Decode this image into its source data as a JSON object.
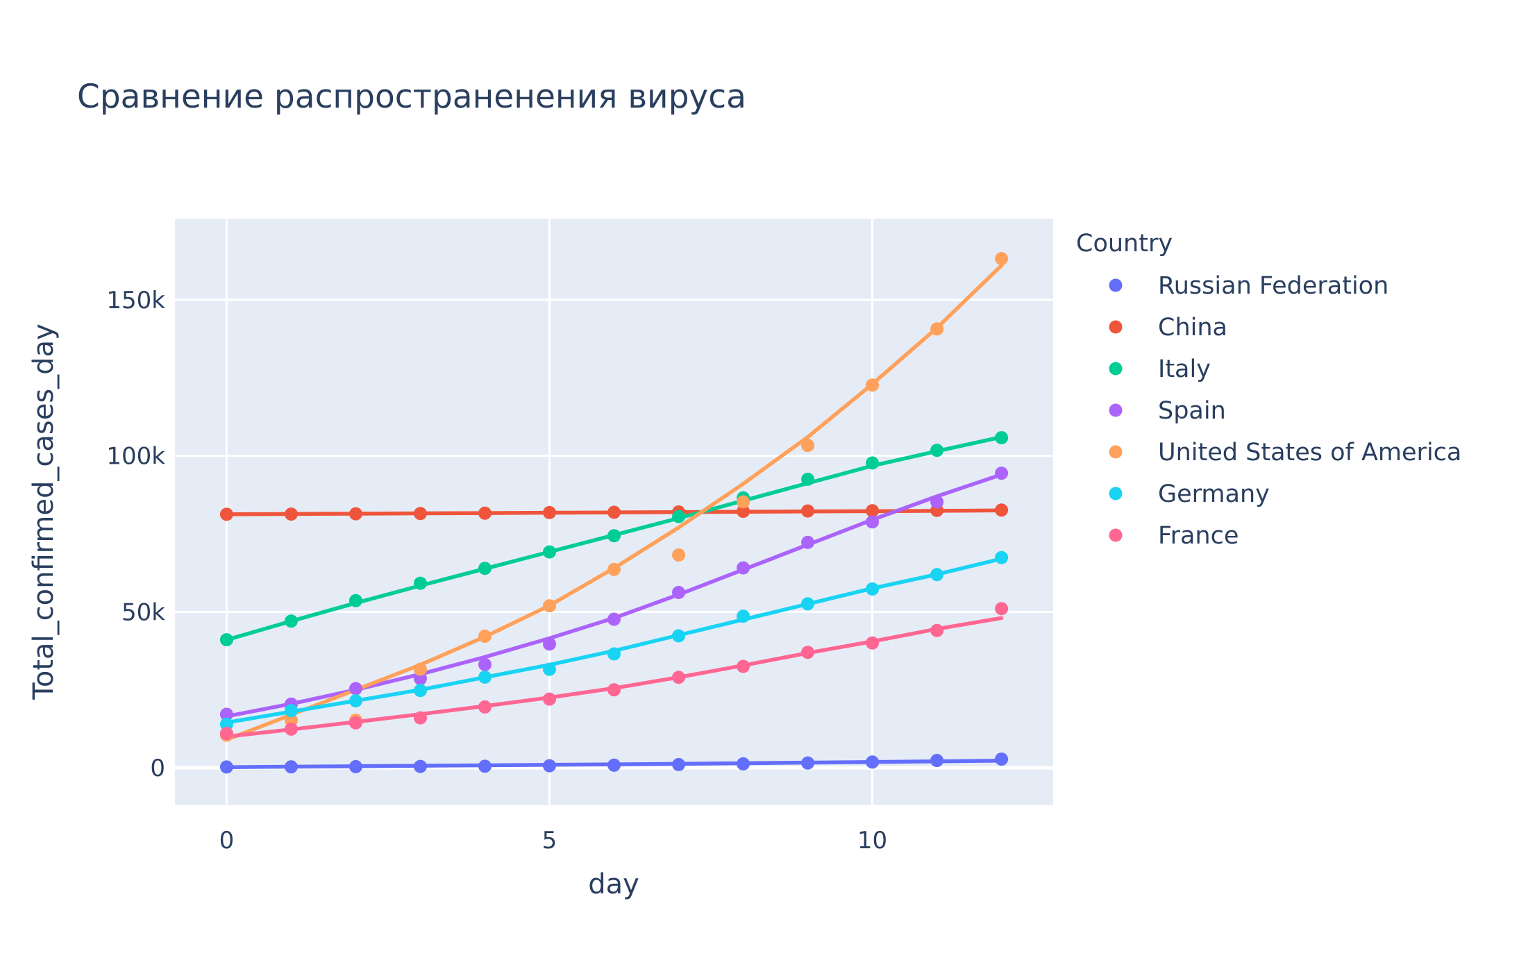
{
  "chart_data": {
    "type": "scatter",
    "title": "Сравнение распространенения вируса",
    "xlabel": "day",
    "ylabel": "Total_confirmed_cases_day",
    "xlim": [
      -0.8,
      12.8
    ],
    "ylim": [
      -12000,
      176000
    ],
    "x_ticks": [
      0,
      5,
      10
    ],
    "x_tick_labels": [
      "0",
      "5",
      "10"
    ],
    "y_ticks": [
      0,
      50000,
      100000,
      150000
    ],
    "y_tick_labels": [
      "0",
      "50k",
      "100k",
      "150k"
    ],
    "grid": true,
    "legend_title": "Country",
    "legend_position": "right",
    "x": [
      0,
      1,
      2,
      3,
      4,
      5,
      6,
      7,
      8,
      9,
      10,
      11,
      12
    ],
    "series": [
      {
        "name": "Russian Federation",
        "color": "#636efa",
        "values": [
          253,
          306,
          367,
          438,
          495,
          658,
          840,
          1036,
          1264,
          1534,
          1836,
          2337,
          2777
        ],
        "trend": [
          200,
          350,
          500,
          650,
          800,
          950,
          1100,
          1250,
          1450,
          1650,
          1850,
          2050,
          2300
        ]
      },
      {
        "name": "China",
        "color": "#ef553b",
        "values": [
          81250,
          81300,
          81400,
          81500,
          81600,
          81800,
          81900,
          82000,
          82200,
          82300,
          82400,
          82500,
          82600
        ],
        "trend": [
          81250,
          81350,
          81450,
          81550,
          81650,
          81750,
          81850,
          81950,
          82050,
          82150,
          82250,
          82350,
          82500
        ]
      },
      {
        "name": "Italy",
        "color": "#00cc96",
        "values": [
          41035,
          47021,
          53578,
          59138,
          63927,
          69176,
          74386,
          80539,
          86498,
          92472,
          97689,
          101739,
          105792
        ],
        "trend": [
          41000,
          47000,
          52800,
          58400,
          63800,
          69200,
          74600,
          80000,
          85600,
          91200,
          96800,
          101500,
          106000
        ]
      },
      {
        "name": "Spain",
        "color": "#ab63fa",
        "values": [
          17147,
          20410,
          25374,
          28572,
          33089,
          39673,
          47610,
          56188,
          64059,
          72248,
          78797,
          85195,
          94417
        ],
        "trend": [
          16500,
          20500,
          25000,
          30000,
          35500,
          41500,
          48000,
          55500,
          63500,
          71500,
          79500,
          87000,
          94000
        ]
      },
      {
        "name": "United States of America",
        "color": "#ffa15a",
        "values": [
          10442,
          15219,
          15219,
          31573,
          42164,
          51914,
          63570,
          68211,
          85228,
          103321,
          122653,
          140640,
          163199
        ],
        "trend": [
          9000,
          17000,
          25000,
          33000,
          42000,
          52000,
          64000,
          77000,
          91000,
          106000,
          123000,
          141000,
          161000
        ]
      },
      {
        "name": "Germany",
        "color": "#19d3f3",
        "values": [
          13957,
          18323,
          21463,
          24774,
          29056,
          31554,
          36508,
          42288,
          48582,
          52547,
          57298,
          61913,
          67366
        ],
        "trend": [
          14500,
          18000,
          21500,
          25000,
          29000,
          33000,
          37500,
          42500,
          47500,
          52500,
          57500,
          62000,
          67000
        ]
      },
      {
        "name": "France",
        "color": "#ff6692",
        "values": [
          11010,
          12400,
          14400,
          16000,
          19500,
          22000,
          25000,
          29000,
          32500,
          37000,
          40000,
          44000,
          51000
        ],
        "trend": [
          10000,
          12300,
          14700,
          17200,
          19800,
          22500,
          25500,
          29000,
          32800,
          36800,
          40500,
          44500,
          48000
        ]
      }
    ]
  }
}
